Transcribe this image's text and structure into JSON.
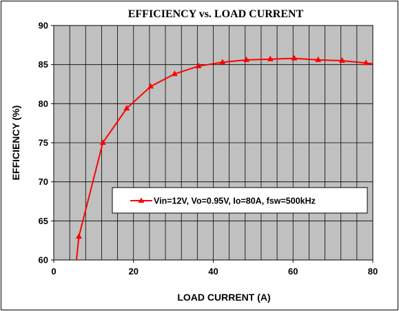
{
  "chart_data": {
    "type": "line",
    "title": "EFFICIENCY vs. LOAD CURRENT",
    "xlabel": "LOAD CURRENT (A)",
    "ylabel": "EFFICIENCY (%)",
    "xlim": [
      0,
      80
    ],
    "ylim": [
      60,
      90
    ],
    "xticks": [
      0,
      20,
      40,
      60,
      80
    ],
    "yticks": [
      60,
      65,
      70,
      75,
      80,
      85,
      90
    ],
    "grid": true,
    "plot_background": "#c0c0c0",
    "legend_position": "center-right",
    "series": [
      {
        "name": "Vin=12V, Vo=0.95V, Io=80A, fsw=500kHz",
        "color": "#ff0000",
        "marker": "triangle",
        "line_x": [
          5.7,
          6.3,
          12.3,
          18.3,
          24.3,
          30.3,
          36.3,
          42.3,
          48.3,
          54.3,
          60.3,
          66.3,
          72.3,
          78.3,
          80
        ],
        "line_y": [
          60.0,
          63.0,
          75.0,
          79.4,
          82.2,
          83.8,
          84.8,
          85.3,
          85.6,
          85.7,
          85.8,
          85.6,
          85.5,
          85.2,
          85.1
        ],
        "x": [
          6.3,
          12.3,
          18.3,
          24.3,
          30.3,
          36.3,
          42.3,
          48.3,
          54.3,
          60.3,
          66.3,
          72.3,
          78.3
        ],
        "y": [
          63.0,
          75.0,
          79.4,
          82.2,
          83.8,
          84.8,
          85.3,
          85.6,
          85.7,
          85.8,
          85.6,
          85.5,
          85.2
        ]
      }
    ]
  }
}
